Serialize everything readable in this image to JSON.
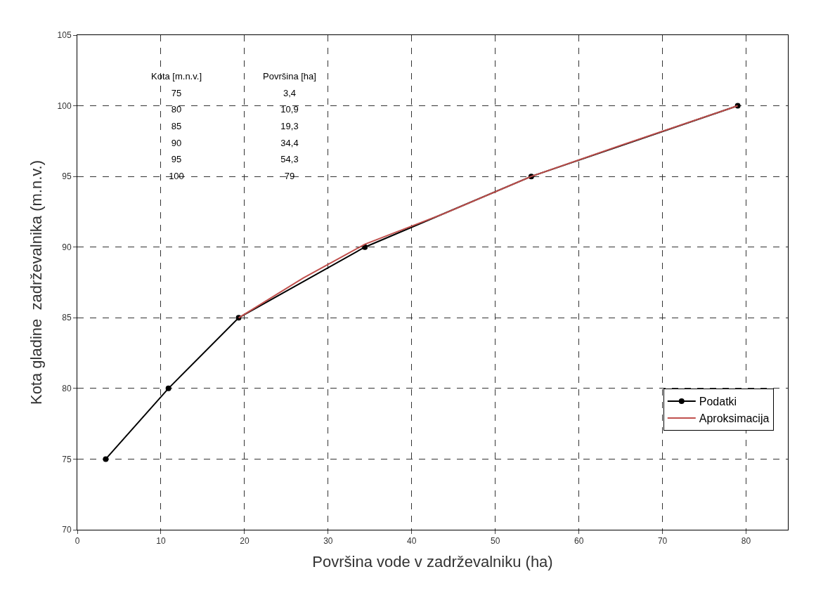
{
  "chart_data": {
    "type": "line",
    "xlabel": "Površina vode v zadrževalniku (ha)",
    "ylabel": "Kota gladine  zadrževalnika (m.n.v.)",
    "xlim": [
      0,
      85
    ],
    "xticks": [
      0,
      10,
      20,
      30,
      40,
      50,
      60,
      70,
      80
    ],
    "ylim": [
      70,
      105
    ],
    "yticks": [
      70,
      75,
      80,
      85,
      90,
      95,
      100,
      105
    ],
    "grid": true,
    "legend": "bottom right",
    "series": [
      {
        "name": "Podatki",
        "color": "#000000",
        "marker": "circle",
        "x": [
          3.4,
          10.9,
          19.3,
          34.4,
          54.3,
          79
        ],
        "values": [
          75,
          80,
          85,
          90,
          95,
          100
        ]
      },
      {
        "name": "Aproksimacija",
        "color": "#c0504d",
        "marker": "none",
        "x": [
          19.3,
          27,
          34.4,
          44,
          54.3,
          65,
          79
        ],
        "values": [
          85,
          87.8,
          90.2,
          92.4,
          95,
          97.2,
          100
        ]
      }
    ],
    "annotations": [
      "Kota [m.n.v.]",
      "Površina [ha]",
      "75",
      "3,4",
      "80",
      "10,9",
      "85",
      "19,3",
      "90",
      "34,4",
      "95",
      "54,3",
      "100",
      "79"
    ]
  }
}
